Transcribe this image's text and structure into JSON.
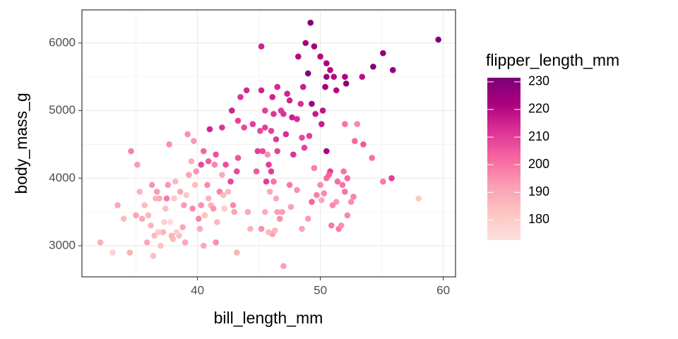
{
  "chart_data": {
    "type": "scatter",
    "xlabel": "bill_length_mm",
    "ylabel": "body_mass_g",
    "xlim": [
      30.6,
      61.0
    ],
    "ylim": [
      2540,
      6490
    ],
    "xticks": [
      40,
      50,
      60
    ],
    "yticks": [
      3000,
      4000,
      5000,
      6000
    ],
    "x_minor_ticks": [
      35,
      45,
      55
    ],
    "y_minor_ticks": [
      3500,
      4500,
      5500
    ],
    "grid": true,
    "x": [
      49.2,
      59.6,
      55.1,
      54.3,
      55.9,
      45.2,
      48.8,
      49.5,
      50.0,
      48.2,
      50.5,
      49.0,
      50.5,
      51.1,
      52.0,
      53.4,
      50.8,
      48.6,
      47.3,
      46.5,
      45.2,
      44.0,
      43.5,
      46.1,
      47.5,
      48.4,
      49.3,
      50.4,
      51.3,
      52.1,
      45.5,
      46.2,
      46.8,
      47.0,
      47.7,
      48.1,
      49.6,
      50.2,
      50.1,
      42.8,
      43.3,
      44.5,
      45.1,
      45.5,
      46.0,
      46.4,
      47.2,
      48.5,
      49.1,
      42.0,
      41.0,
      43.8,
      45.3,
      44.9,
      46.5,
      45.8,
      44.8,
      46.0,
      45.6,
      42.7,
      43.2,
      42.3,
      41.5,
      40.9,
      40.5,
      40.3,
      43.3,
      47.8,
      48.7,
      50.5,
      52.0,
      45.7,
      46.5,
      50.0,
      51.3,
      52.7,
      45.2,
      46.1,
      47.0,
      49.7,
      51.0,
      50.5,
      52.0,
      53.5,
      55.8,
      58.0,
      46.4,
      45.5,
      50.9,
      50.8,
      51.5,
      49.5,
      52.2,
      49.0,
      48.5,
      54.2,
      51.9,
      51.7,
      52.5,
      46.9,
      45.9,
      46.2,
      50.1,
      51.4,
      53.0,
      51.8,
      49.3,
      46.7,
      47.5,
      48.1,
      46.3,
      50.7,
      52.2,
      50.3,
      52.8,
      55.1,
      47.6,
      32.1,
      33.1,
      33.5,
      34.0,
      34.5,
      34.6,
      35.0,
      35.1,
      35.3,
      35.5,
      35.7,
      35.9,
      36.0,
      36.2,
      36.4,
      36.5,
      36.6,
      36.7,
      37.0,
      37.2,
      37.3,
      37.5,
      37.6,
      37.7,
      37.8,
      38.1,
      38.2,
      38.6,
      38.8,
      38.9,
      39.1,
      39.2,
      39.5,
      39.6,
      39.7,
      39.8,
      40.1,
      40.3,
      40.6,
      40.9,
      41.1,
      41.3,
      41.5,
      41.8,
      42.0,
      42.2,
      42.5,
      42.9,
      43.2,
      40.2,
      38.0,
      37.9,
      39.0,
      36.9,
      38.5,
      39.3,
      40.8,
      41.4,
      42.1,
      39.9,
      36.3,
      38.3,
      43.0,
      44.1,
      44.3,
      45.8,
      41.6,
      40.5,
      37.4,
      36.8
    ],
    "values": [
      6300,
      6050,
      5850,
      5650,
      5600,
      5950,
      6000,
      5950,
      5800,
      5800,
      5700,
      5550,
      5500,
      5500,
      5500,
      5500,
      5600,
      5350,
      5250,
      5350,
      5300,
      5300,
      5200,
      5200,
      5150,
      5100,
      5100,
      5350,
      5300,
      5400,
      5000,
      4950,
      5000,
      4950,
      4900,
      4875,
      4950,
      5000,
      4800,
      5000,
      4850,
      4800,
      4700,
      4750,
      4700,
      4575,
      4650,
      4600,
      4625,
      4750,
      4725,
      4750,
      4400,
      4400,
      4400,
      4200,
      4100,
      4100,
      3950,
      3950,
      4100,
      4200,
      4350,
      4250,
      4400,
      4200,
      4300,
      4350,
      4450,
      4400,
      4800,
      4350,
      3500,
      3900,
      3650,
      3725,
      3250,
      3175,
      2700,
      3750,
      3600,
      4000,
      3800,
      4500,
      4000,
      3700,
      3700,
      3500,
      3300,
      4100,
      3250,
      4150,
      4000,
      3400,
      3250,
      4300,
      4100,
      3300,
      3650,
      3500,
      3800,
      3950,
      3675,
      3950,
      4800,
      3900,
      3650,
      3400,
      3900,
      3825,
      3225,
      4050,
      3450,
      3775,
      4550,
      3950,
      3575,
      3050,
      2900,
      3600,
      3400,
      2900,
      4400,
      3450,
      4200,
      3800,
      3400,
      3600,
      3050,
      3450,
      3300,
      2850,
      3150,
      3700,
      3800,
      3000,
      3200,
      3350,
      3700,
      3900,
      4500,
      3350,
      3700,
      3950,
      3800,
      3275,
      3600,
      3750,
      4650,
      4250,
      3550,
      4550,
      3900,
      3400,
      3600,
      3450,
      3700,
      3600,
      3550,
      3050,
      3800,
      4050,
      3550,
      3800,
      3600,
      2900,
      3250,
      3100,
      3150,
      3050,
      3700,
      3150,
      4050,
      3900,
      4200,
      3750,
      4100,
      3900,
      3200,
      3500,
      3500,
      3250,
      3200,
      3350,
      3000,
      3550,
      3200
    ],
    "color_values": [
      230,
      230,
      228,
      230,
      228,
      215,
      222,
      222,
      220,
      220,
      222,
      230,
      225,
      220,
      221,
      219,
      220,
      216,
      215,
      214,
      215,
      214,
      212,
      215,
      215,
      213,
      224,
      224,
      220,
      228,
      210,
      212,
      211,
      212,
      216,
      213,
      217,
      218,
      216,
      215,
      209,
      210,
      208,
      210,
      209,
      211,
      213,
      208,
      210,
      212,
      215,
      208,
      208,
      210,
      209,
      210,
      205,
      210,
      210,
      208,
      208,
      207,
      206,
      204,
      203,
      208,
      206,
      212,
      209,
      222,
      200,
      195,
      192,
      196,
      193,
      197,
      195,
      193,
      192,
      198,
      196,
      201,
      200,
      205,
      210,
      181,
      190,
      188,
      199,
      210,
      199,
      198,
      202,
      193,
      191,
      201,
      200,
      195,
      195,
      192,
      190,
      200,
      190,
      201,
      197,
      200,
      203,
      195,
      199,
      195,
      187,
      203,
      197,
      196,
      202,
      199,
      192,
      188,
      178,
      190,
      185,
      187,
      198,
      191,
      193,
      187,
      190,
      185,
      190,
      186,
      187,
      184,
      185,
      186,
      193,
      183,
      187,
      178,
      199,
      194,
      195,
      174,
      181,
      185,
      190,
      190,
      193,
      181,
      195,
      188,
      196,
      193,
      184,
      197,
      195,
      183,
      187,
      188,
      194,
      195,
      198,
      190,
      180,
      185,
      196,
      187,
      189,
      185,
      187,
      190,
      189,
      184,
      191,
      196,
      197,
      185,
      194,
      194,
      179,
      191,
      190,
      187,
      186,
      186,
      190,
      184,
      180
    ],
    "colorbar": {
      "title": "flipper_length_mm",
      "lim": [
        172.7,
        231.5
      ],
      "ticks": [
        180,
        190,
        200,
        210,
        220,
        230
      ],
      "colors": [
        "#fde0dd",
        "#fcc5c0",
        "#fa9fb5",
        "#f768a1",
        "#dd3497",
        "#ae017e",
        "#7a0177"
      ]
    }
  }
}
